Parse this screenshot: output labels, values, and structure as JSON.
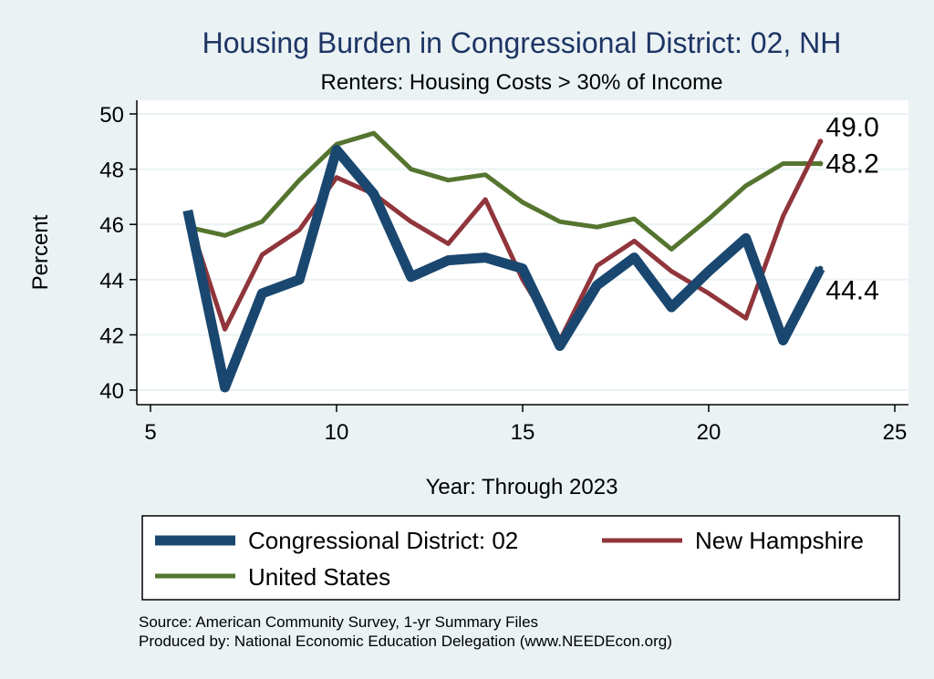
{
  "chart_data": {
    "type": "line",
    "title": "Housing Burden in Congressional District:  02, NH",
    "subtitle": "Renters: Housing Costs > 30% of Income",
    "xlabel": "Year: Through 2023",
    "ylabel": "Percent",
    "xlim": [
      5,
      25
    ],
    "ylim": [
      40,
      50
    ],
    "xticks": [
      5,
      10,
      15,
      20,
      25
    ],
    "yticks": [
      40,
      42,
      44,
      46,
      48,
      50
    ],
    "grid": true,
    "legend_position": "bottom",
    "x": [
      6,
      7,
      8,
      9,
      10,
      11,
      12,
      13,
      14,
      15,
      16,
      17,
      18,
      19,
      20,
      21,
      22,
      23
    ],
    "series": [
      {
        "name": "Congressional District:  02",
        "color": "#1a476f",
        "values": [
          46.5,
          40.1,
          43.5,
          44.0,
          48.7,
          47.1,
          44.1,
          44.7,
          44.8,
          44.4,
          41.6,
          43.8,
          44.8,
          43.0,
          44.3,
          45.5,
          41.8,
          44.4
        ],
        "end_label": "44.4"
      },
      {
        "name": "New Hampshire",
        "color": "#90353b",
        "values": [
          46.3,
          42.2,
          44.9,
          45.8,
          47.7,
          47.1,
          46.1,
          45.3,
          46.9,
          44.0,
          41.8,
          44.5,
          45.4,
          44.3,
          43.5,
          42.6,
          46.3,
          49.0
        ],
        "end_label": "49.0"
      },
      {
        "name": "United States",
        "color": "#55752f",
        "values": [
          45.9,
          45.6,
          46.1,
          47.6,
          48.9,
          49.3,
          48.0,
          47.6,
          47.8,
          46.8,
          46.1,
          45.9,
          46.2,
          45.1,
          46.2,
          47.4,
          48.2,
          48.2
        ],
        "end_label": "48.2"
      }
    ],
    "notes": [
      "Source: American Community Survey, 1-yr Summary Files",
      "Produced by: National Economic Education Delegation (www.NEEDEcon.org)"
    ]
  }
}
